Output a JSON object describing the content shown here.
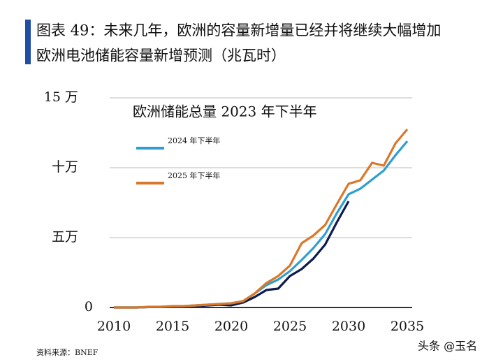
{
  "chart_data": {
    "type": "line",
    "title": "图表 49：未来几年，欧洲的容量新增量已经并将继续大幅增加",
    "subtitle": "欧洲电池储能容量新增预测（兆瓦时）",
    "source": "资料来源：BNEF",
    "watermark": "头条 @玉名",
    "x": [
      2010,
      2011,
      2012,
      2013,
      2014,
      2015,
      2016,
      2017,
      2018,
      2019,
      2020,
      2021,
      2022,
      2023,
      2024,
      2025,
      2026,
      2027,
      2028,
      2029,
      2030,
      2031,
      2032,
      2033,
      2034,
      2035
    ],
    "xlim": [
      2010,
      2035
    ],
    "xticks": [
      2010,
      2015,
      2020,
      2025,
      2030,
      2035
    ],
    "ylim": [
      0,
      150000
    ],
    "yticks": [
      {
        "value": 0,
        "label": "0"
      },
      {
        "value": 50000,
        "label": "五万"
      },
      {
        "value": 100000,
        "label": "十万"
      },
      {
        "value": 150000,
        "label": "15 万"
      }
    ],
    "grid": true,
    "series": [
      {
        "name": "欧洲储能总量 2023 年下半年",
        "color": "#0d1b4d",
        "values": [
          0,
          0,
          0,
          300,
          400,
          600,
          800,
          1000,
          1500,
          2000,
          1500,
          3500,
          7500,
          12500,
          13500,
          22500,
          27500,
          35000,
          45000,
          61000,
          76000,
          null,
          null,
          null,
          null,
          null
        ]
      },
      {
        "name": "2024 年下半年",
        "color": "#2e9fd0",
        "values": [
          0,
          0,
          0,
          400,
          500,
          800,
          1000,
          1500,
          2000,
          2500,
          3000,
          4500,
          10000,
          16000,
          20000,
          26000,
          34000,
          42500,
          52500,
          67500,
          81000,
          85000,
          91500,
          98000,
          109000,
          119000
        ]
      },
      {
        "name": "2025 年下半年",
        "color": "#d9782a",
        "values": [
          0,
          0,
          0,
          500,
          500,
          1000,
          1000,
          1500,
          2000,
          2500,
          3000,
          4500,
          10000,
          17500,
          22500,
          30000,
          46000,
          51500,
          59000,
          74000,
          88500,
          91000,
          103500,
          101500,
          117500,
          127500
        ]
      }
    ]
  }
}
